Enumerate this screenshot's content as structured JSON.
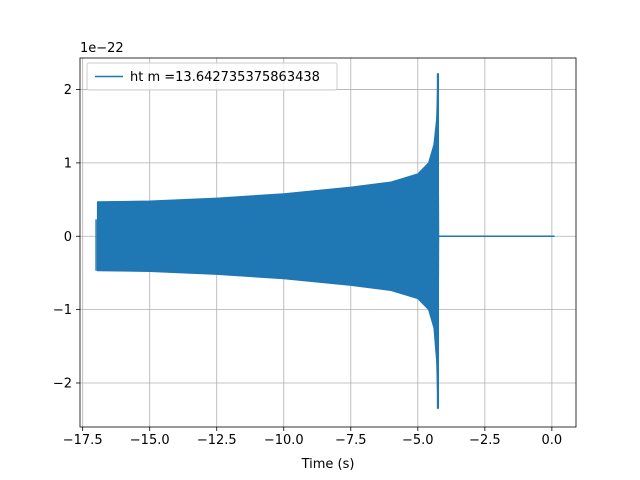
{
  "chart_data": {
    "type": "line",
    "title": "",
    "xlabel": "Time (s)",
    "ylabel": "",
    "y_offset_label": "1e−22",
    "xlim": [
      -17.6,
      0.9
    ],
    "ylim": [
      -2.6,
      2.43
    ],
    "x_ticks": [
      -17.5,
      -15.0,
      -12.5,
      -10.0,
      -7.5,
      -5.0,
      -2.5,
      0.0
    ],
    "x_tick_labels": [
      "−17.5",
      "−15.0",
      "−12.5",
      "−10.0",
      "−7.5",
      "−5.0",
      "−2.5",
      "0.0"
    ],
    "y_ticks": [
      -2,
      -1,
      0,
      1,
      2
    ],
    "y_tick_labels": [
      "−2",
      "−1",
      "0",
      "1",
      "2"
    ],
    "grid": true,
    "legend_position": "top-left",
    "series": [
      {
        "name": "ht m =13.642735375863438",
        "color": "#1f77b4",
        "t_start": -16.95,
        "t_merger": -4.22,
        "t_end": 0.1,
        "initial_amplitude": 0.47,
        "max_positive": 2.22,
        "max_negative": -2.35,
        "envelope": [
          {
            "t": -16.95,
            "upper": 0.47,
            "lower": -0.47
          },
          {
            "t": -15.0,
            "upper": 0.48,
            "lower": -0.48
          },
          {
            "t": -12.5,
            "upper": 0.52,
            "lower": -0.52
          },
          {
            "t": -10.0,
            "upper": 0.58,
            "lower": -0.58
          },
          {
            "t": -7.5,
            "upper": 0.67,
            "lower": -0.67
          },
          {
            "t": -6.0,
            "upper": 0.74,
            "lower": -0.74
          },
          {
            "t": -5.0,
            "upper": 0.85,
            "lower": -0.85
          },
          {
            "t": -4.6,
            "upper": 1.0,
            "lower": -1.0
          },
          {
            "t": -4.4,
            "upper": 1.25,
            "lower": -1.25
          },
          {
            "t": -4.3,
            "upper": 1.6,
            "lower": -1.7
          },
          {
            "t": -4.25,
            "upper": 2.22,
            "lower": -2.35
          },
          {
            "t": -4.22,
            "upper": 0.0,
            "lower": 0.0
          },
          {
            "t": 0.1,
            "upper": 0.0,
            "lower": 0.0
          }
        ]
      }
    ]
  }
}
